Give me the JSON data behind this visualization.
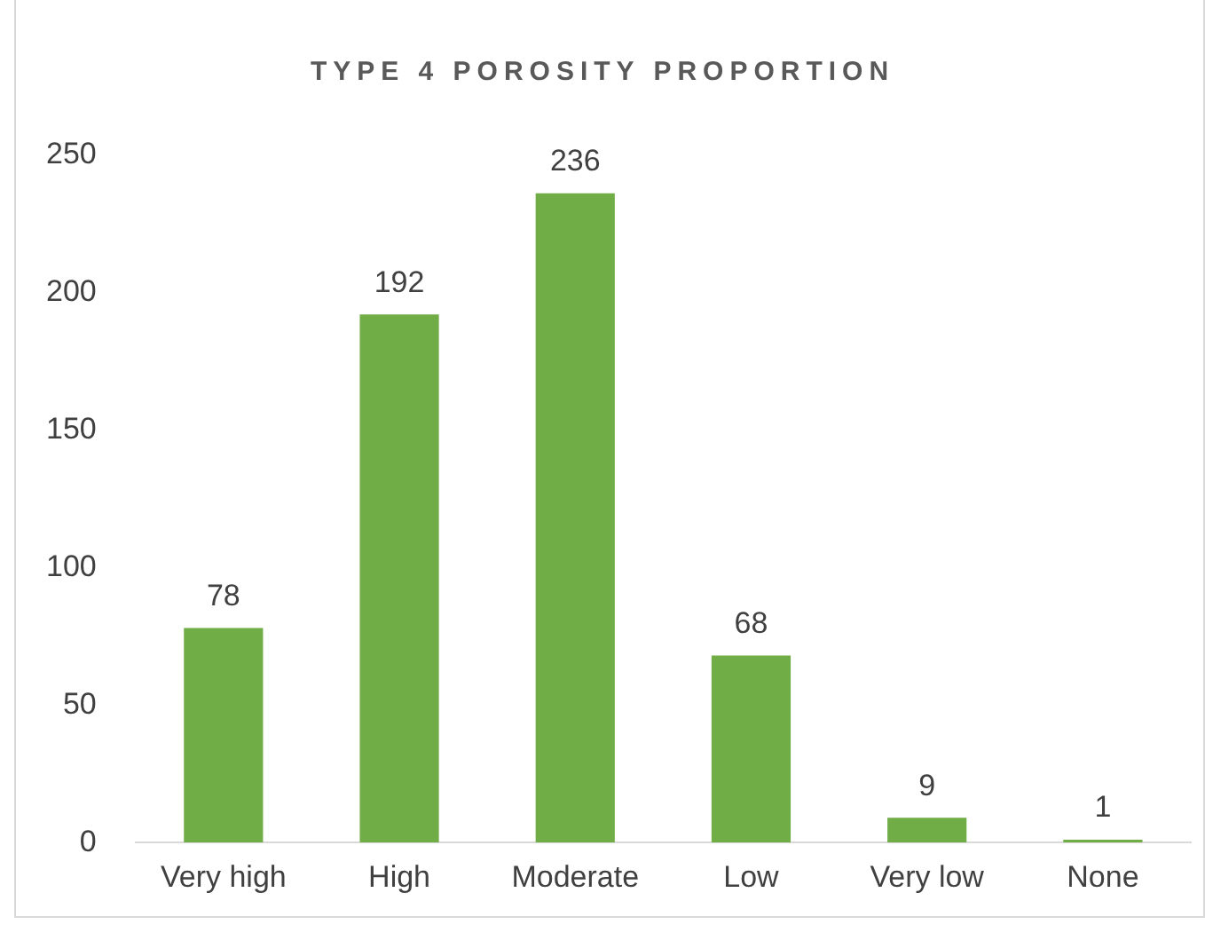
{
  "chart_data": {
    "type": "bar",
    "title": "TYPE 4 POROSITY PROPORTION",
    "categories": [
      "Very high",
      "High",
      "Moderate",
      "Low",
      "Very low",
      "None"
    ],
    "values": [
      78,
      192,
      236,
      68,
      9,
      1
    ],
    "color": "#70ad47",
    "ylim": [
      0,
      250
    ],
    "yticks": [
      0,
      50,
      100,
      150,
      200,
      250
    ],
    "grid": false,
    "legend": false,
    "data_labels": true
  }
}
